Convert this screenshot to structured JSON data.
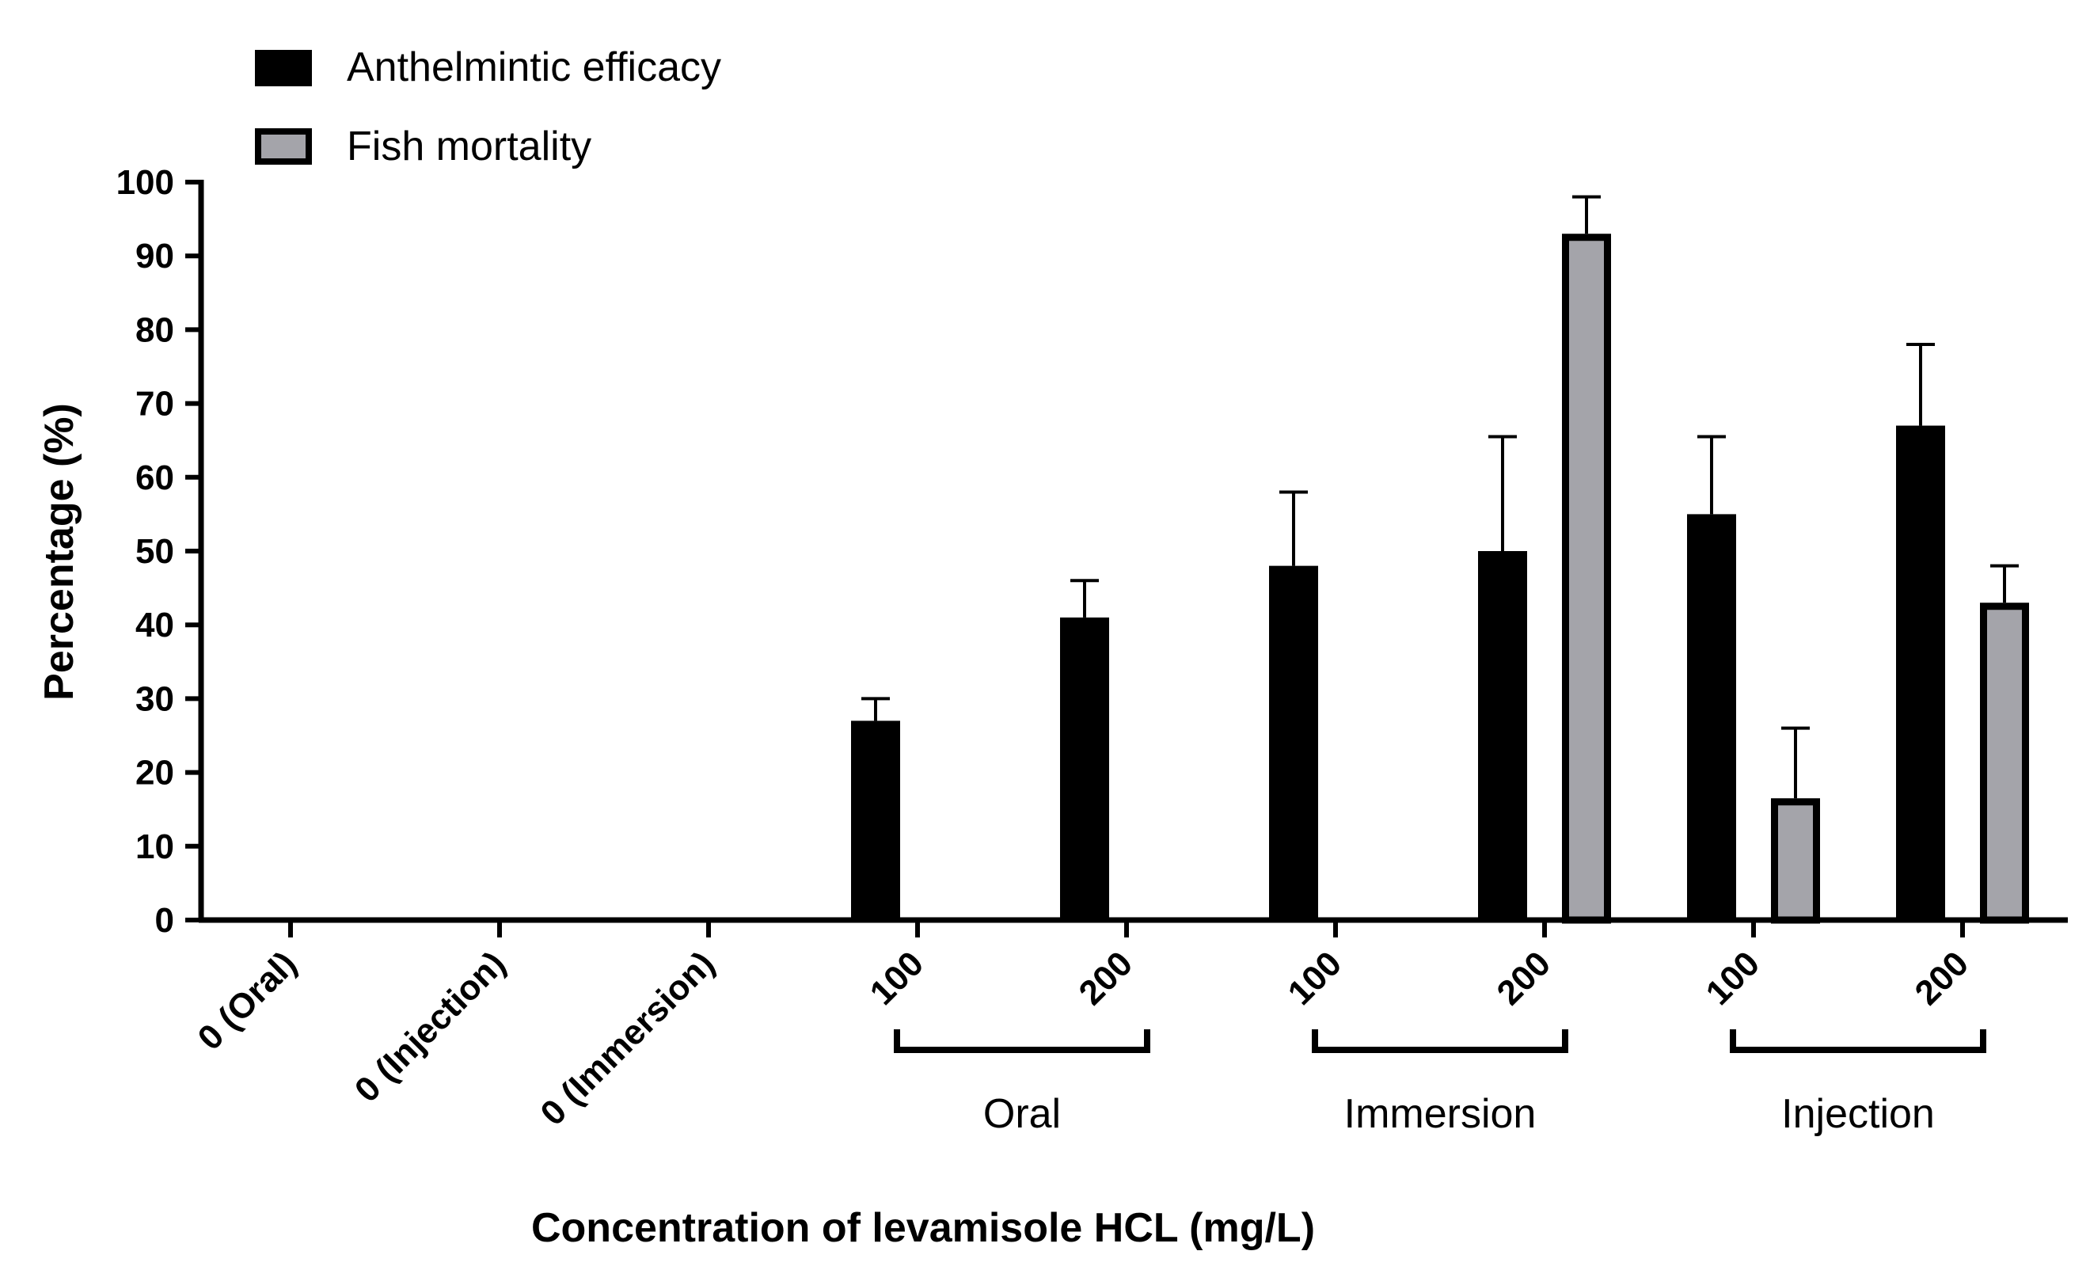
{
  "chart_data": {
    "type": "bar",
    "title": "",
    "ylabel": "Percentage (%)",
    "xlabel": "Concentration of levamisole HCL (mg/L)",
    "ylim": [
      0,
      100
    ],
    "yticks": [
      "0",
      "10",
      "20",
      "30",
      "40",
      "50",
      "60",
      "70",
      "80",
      "90",
      "100"
    ],
    "categories": [
      "0 (Oral)",
      "0 (Injection)",
      "0 (Immersion)",
      "100",
      "200",
      "100",
      "200",
      "100",
      "200"
    ],
    "groups": [
      {
        "label": "Oral",
        "start": 3,
        "end": 4
      },
      {
        "label": "Immersion",
        "start": 5,
        "end": 6
      },
      {
        "label": "Injection",
        "start": 7,
        "end": 8
      }
    ],
    "series": [
      {
        "name": "Anthelmintic efficacy",
        "color": "#000000",
        "values": [
          0,
          0,
          0,
          27,
          41,
          48,
          50,
          55,
          67
        ],
        "errors": [
          0,
          0,
          0,
          3,
          5,
          10,
          15.5,
          10.5,
          11
        ]
      },
      {
        "name": "Fish mortality",
        "color": "#a4a4aa",
        "values": [
          0,
          0,
          0,
          0,
          0,
          0,
          93,
          16.5,
          43
        ],
        "errors": [
          0,
          0,
          0,
          0,
          0,
          0,
          5,
          9.5,
          5
        ]
      }
    ],
    "legend_position": "top-left"
  }
}
